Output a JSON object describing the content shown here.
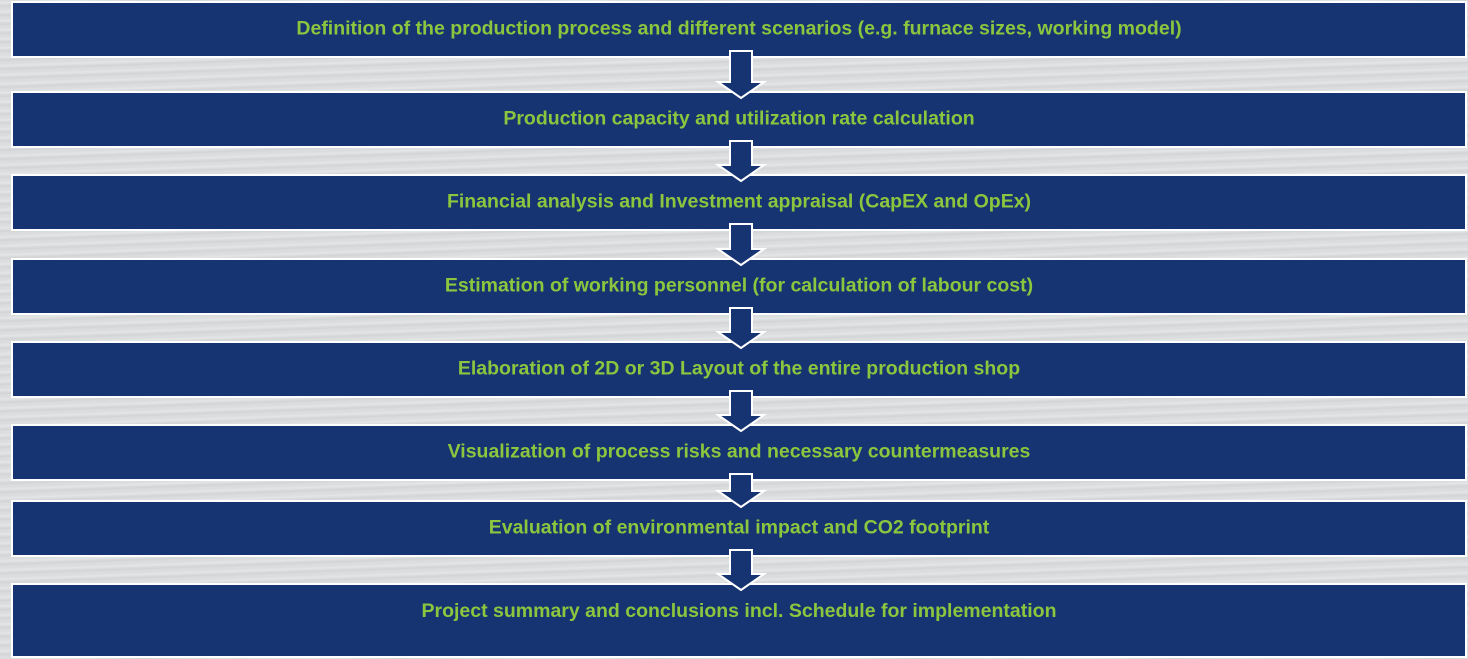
{
  "steps": [
    {
      "label": "Definition of the production process and different scenarios (e.g. furnace sizes, working model)"
    },
    {
      "label": "Production capacity and utilization rate calculation"
    },
    {
      "label": "Financial analysis and Investment appraisal (CapEX and OpEx)"
    },
    {
      "label": "Estimation of working personnel (for calculation of labour cost)"
    },
    {
      "label": "Elaboration of 2D or 3D Layout of the entire production shop"
    },
    {
      "label": "Visualization of process risks and necessary countermeasures"
    },
    {
      "label": "Evaluation of environmental impact and CO2 footprint"
    },
    {
      "label": "Project summary and conclusions incl. Schedule for implementation"
    }
  ]
}
